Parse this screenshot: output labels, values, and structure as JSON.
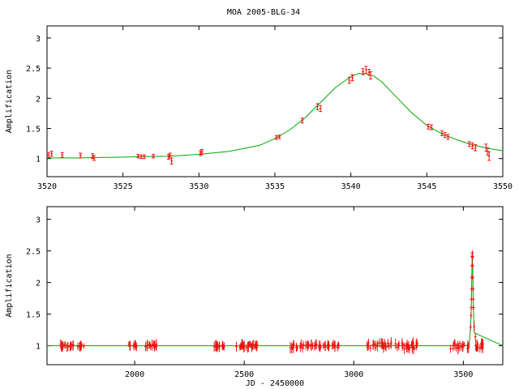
{
  "figure": {
    "title": "MOA 2005-BLG-34",
    "xlabel": "JD - 2450000"
  },
  "colors": {
    "model": "#00aa00",
    "data": "#ee1111",
    "axes": "#000000",
    "background": "#ffffff"
  },
  "chart_data": [
    {
      "type": "scatter",
      "title": "MOA 2005-BLG-34",
      "xlabel": "",
      "ylabel": "Amplification",
      "xlim": [
        3520,
        3550
      ],
      "ylim": [
        0.7,
        3.2
      ],
      "xticks": [
        3520,
        3525,
        3530,
        3535,
        3540,
        3545,
        3550
      ],
      "yticks": [
        1,
        1.5,
        2,
        2.5,
        3
      ],
      "ytick_labels": [
        "1",
        "1.5",
        "2",
        "2.5",
        "3"
      ],
      "grid": false,
      "model_curve": {
        "type": "line",
        "x": [
          3520,
          3522,
          3524,
          3526,
          3528,
          3530,
          3532,
          3534,
          3535,
          3536,
          3537,
          3538,
          3539,
          3540,
          3540.5,
          3541,
          3541.5,
          3542,
          3543,
          3544,
          3545,
          3546,
          3547,
          3548,
          3549,
          3550
        ],
        "y": [
          1.01,
          1.01,
          1.02,
          1.03,
          1.04,
          1.07,
          1.12,
          1.22,
          1.33,
          1.48,
          1.68,
          1.93,
          2.18,
          2.36,
          2.41,
          2.41,
          2.37,
          2.28,
          2.02,
          1.76,
          1.55,
          1.41,
          1.31,
          1.23,
          1.17,
          1.13
        ]
      },
      "data_points": {
        "x": [
          3520.1,
          3520.3,
          3521.0,
          3522.2,
          3523.0,
          3523.1,
          3526.0,
          3526.2,
          3526.4,
          3527.0,
          3528.0,
          3528.1,
          3528.2,
          3530.1,
          3530.2,
          3535.1,
          3535.3,
          3536.8,
          3537.8,
          3538.0,
          3539.9,
          3540.1,
          3540.8,
          3541.0,
          3541.2,
          3541.3,
          3545.1,
          3545.3,
          3546.0,
          3546.2,
          3546.4,
          3547.8,
          3548.0,
          3548.2,
          3548.9,
          3549.0,
          3549.1
        ],
        "y": [
          1.06,
          1.08,
          1.06,
          1.05,
          1.04,
          1.01,
          1.04,
          1.03,
          1.03,
          1.04,
          1.03,
          1.05,
          0.96,
          1.09,
          1.11,
          1.35,
          1.36,
          1.63,
          1.86,
          1.83,
          2.3,
          2.34,
          2.44,
          2.47,
          2.43,
          2.38,
          1.53,
          1.52,
          1.42,
          1.39,
          1.36,
          1.24,
          1.21,
          1.18,
          1.18,
          1.12,
          1.04
        ],
        "err": [
          0.04,
          0.04,
          0.04,
          0.04,
          0.04,
          0.04,
          0.03,
          0.03,
          0.03,
          0.03,
          0.04,
          0.04,
          0.05,
          0.04,
          0.04,
          0.03,
          0.03,
          0.04,
          0.05,
          0.05,
          0.05,
          0.05,
          0.05,
          0.06,
          0.05,
          0.06,
          0.04,
          0.04,
          0.04,
          0.04,
          0.04,
          0.04,
          0.05,
          0.05,
          0.06,
          0.06,
          0.07
        ]
      }
    },
    {
      "type": "scatter",
      "xlabel": "JD - 2450000",
      "ylabel": "Amplification",
      "xlim": [
        1600,
        3680
      ],
      "ylim": [
        0.7,
        3.2
      ],
      "xticks": [
        2000,
        2500,
        3000,
        3500
      ],
      "yticks": [
        1,
        1.5,
        2,
        2.5,
        3
      ],
      "ytick_labels": [
        "1",
        "1.5",
        "2",
        "2.5",
        "3"
      ],
      "grid": false,
      "baseline": 1,
      "peak": {
        "x": 3541,
        "y": 2.47
      },
      "observing_seasons": [
        {
          "start": 1650,
          "end": 1720,
          "scatter": 0.03
        },
        {
          "start": 1740,
          "end": 1770,
          "scatter": 0.02
        },
        {
          "start": 1970,
          "end": 2010,
          "scatter": 0.03
        },
        {
          "start": 2050,
          "end": 2110,
          "scatter": 0.03
        },
        {
          "start": 2355,
          "end": 2420,
          "scatter": 0.02
        },
        {
          "start": 2460,
          "end": 2560,
          "scatter": 0.03
        },
        {
          "start": 2710,
          "end": 2830,
          "scatter": 0.04
        },
        {
          "start": 2840,
          "end": 2935,
          "scatter": 0.03
        },
        {
          "start": 3060,
          "end": 3290,
          "scatter": 0.05
        },
        {
          "start": 3440,
          "end": 3600,
          "scatter": 0.05
        }
      ]
    }
  ]
}
